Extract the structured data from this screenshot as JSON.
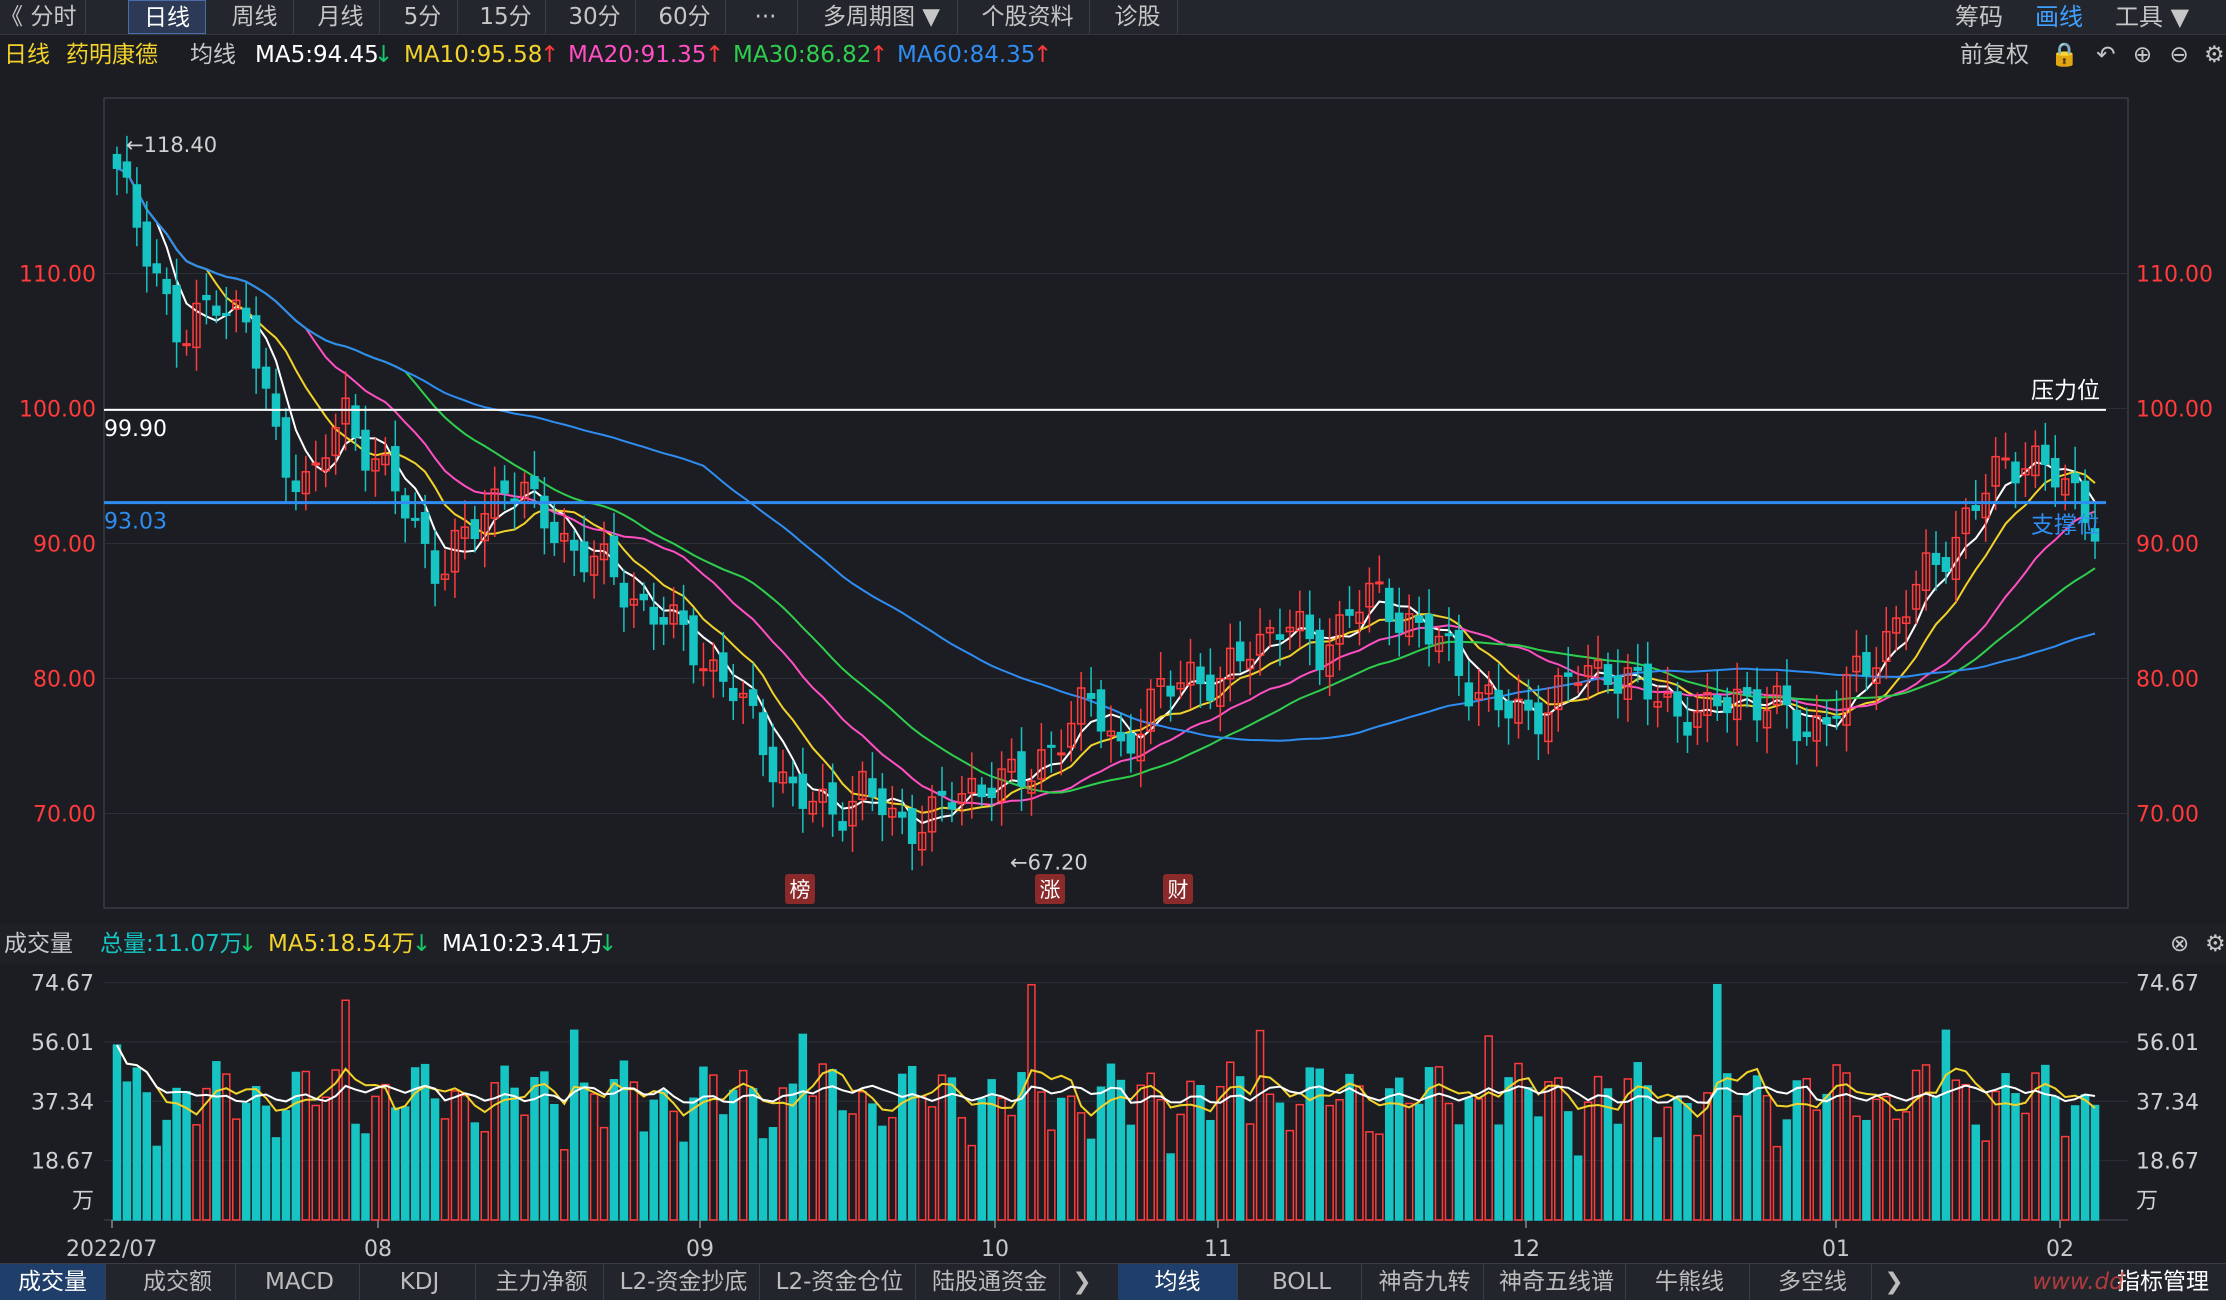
{
  "topbar": {
    "back_glyph": "《",
    "tabs": [
      {
        "label": "分时"
      },
      {
        "label": "日线",
        "active": true
      },
      {
        "label": "周线"
      },
      {
        "label": "月线"
      },
      {
        "label": "5分"
      },
      {
        "label": "15分"
      },
      {
        "label": "30分"
      },
      {
        "label": "60分"
      },
      {
        "label": "···"
      },
      {
        "label": "多周期图 ▼"
      },
      {
        "label": "个股资料"
      },
      {
        "label": "诊股"
      }
    ],
    "right": {
      "chips": "筹码",
      "draw": "画线",
      "tools": "工具 ▼"
    }
  },
  "ma_line": {
    "period": "日线",
    "stock": "药明康德",
    "mode": "均线",
    "ma5": "MA5:94.45",
    "ma5_dir": "↓",
    "ma10": "MA10:95.58",
    "ma10_dir": "↑",
    "ma20": "MA20:91.35",
    "ma20_dir": "↑",
    "ma30": "MA30:86.82",
    "ma30_dir": "↑",
    "ma60": "MA60:84.35",
    "ma60_dir": "↑",
    "adjust": "前复权"
  },
  "colors": {
    "up": "#ff3b3b",
    "down": "#16c4c4",
    "ma5": "#ffffff",
    "ma10": "#f2d22b",
    "ma20": "#ff4fc2",
    "ma30": "#2fcf4d",
    "ma60": "#2f8df2",
    "support": "#2f8df2",
    "bg": "#1b1d23"
  },
  "chart_data": {
    "type": "candlestick",
    "y_ticks": [
      "110.00",
      "100.00",
      "90.00",
      "80.00",
      "70.00"
    ],
    "y_values": [
      110,
      100,
      90,
      80,
      70
    ],
    "ylim": [
      63,
      123
    ],
    "x_ticks": [
      "2022/07",
      "08",
      "09",
      "10",
      "11",
      "12",
      "01",
      "02"
    ],
    "annotations": {
      "high": "←118.40",
      "low": "←67.20",
      "resistance_value": "99.90",
      "support_value": "93.03",
      "resistance_label": "压力位",
      "support_label": "支撑位"
    },
    "resistance": 99.9,
    "support": 93.03,
    "event_tags": [
      "榜",
      "涨",
      "财"
    ],
    "candle_anchors": [
      117,
      112,
      104,
      109,
      106,
      97,
      94,
      100,
      96,
      92,
      88,
      91,
      95,
      92,
      90,
      88,
      86,
      84,
      82,
      79,
      75,
      71,
      70,
      72,
      69,
      70,
      71,
      73,
      72,
      76,
      78,
      75,
      78,
      81,
      79,
      83,
      84,
      82,
      85,
      86,
      84,
      82,
      79,
      77,
      78,
      80,
      81,
      79,
      78,
      77,
      79,
      78,
      76,
      78,
      81,
      85,
      88,
      92,
      95,
      97,
      94,
      92
    ],
    "volume": {
      "y_ticks": [
        "74.67",
        "56.01",
        "37.34",
        "18.67",
        "万"
      ],
      "y_values": [
        74.67,
        56.01,
        37.34,
        18.67,
        0
      ],
      "ylim": [
        0,
        78
      ]
    }
  },
  "vol_header": {
    "label": "成交量",
    "total": "总量:11.07万",
    "total_dir": "↓",
    "ma5": "MA5:18.54万",
    "ma5_dir": "↓",
    "ma10": "MA10:23.41万",
    "ma10_dir": "↓"
  },
  "bottombar": {
    "left_tabs": [
      {
        "label": "成交量",
        "active": true
      },
      {
        "label": "成交额"
      },
      {
        "label": "MACD"
      },
      {
        "label": "KDJ"
      },
      {
        "label": "主力净额"
      },
      {
        "label": "L2-资金抄底"
      },
      {
        "label": "L2-资金仓位"
      },
      {
        "label": "陆股通资金"
      }
    ],
    "right_tabs": [
      {
        "label": "均线",
        "active": true
      },
      {
        "label": "BOLL"
      },
      {
        "label": "神奇九转"
      },
      {
        "label": "神奇五线谱"
      },
      {
        "label": "牛熊线"
      },
      {
        "label": "多空线"
      }
    ],
    "manage": "指标管理",
    "watermark": "www.dd"
  }
}
